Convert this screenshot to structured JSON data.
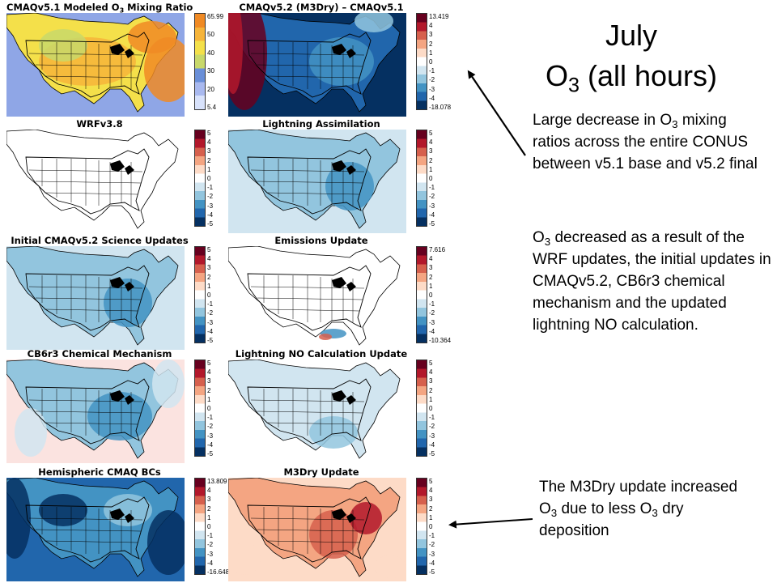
{
  "slide": {
    "title_line1": "July",
    "title_line2_prefix": "O",
    "title_line2_sub": "3",
    "title_line2_suffix": " (all hours)",
    "text1": {
      "a": "Large decrease in O",
      "a_sub": "3",
      "b": " mixing ratios across the entire CONUS between v5.1 base and v5.2 final"
    },
    "text2": {
      "a": "O",
      "a_sub": "3",
      "b": " decreased as a result of the WRF updates, the initial updates in CMAQv5.2, CB6r3 chemical mechanism and the updated lightning NO calculation."
    },
    "text3": {
      "a": "The M3Dry update increased O",
      "a_sub": "3",
      "b": " due to less O",
      "b_sub": "3",
      "c": " dry deposition"
    }
  },
  "panels": [
    {
      "title_a": "CMAQv5.1 Modeled O",
      "title_sub": "3",
      "title_b": " Mixing Ratio",
      "scheme": "abs",
      "ticks": [
        "65.99",
        "50",
        "40",
        "30",
        "20",
        "5.4"
      ]
    },
    {
      "title_a": "CMAQv5.2 (M3Dry) – CMAQv5.1",
      "title_sub": "",
      "title_b": "",
      "scheme": "bigneg",
      "ticks": [
        "13.419",
        "4",
        "3",
        "2",
        "1",
        "0",
        "-1",
        "-2",
        "-3",
        "-4",
        "-18.078"
      ]
    },
    {
      "title_a": "WRFv3.8",
      "title_sub": "",
      "title_b": "",
      "scheme": "slight",
      "ticks": [
        "5",
        "4",
        "3",
        "2",
        "1",
        "0",
        "-1",
        "-2",
        "-3",
        "-4",
        "-5"
      ]
    },
    {
      "title_a": "Lightning Assimilation",
      "title_sub": "",
      "title_b": "",
      "scheme": "moderate",
      "ticks": [
        "5",
        "4",
        "3",
        "2",
        "1",
        "0",
        "-1",
        "-2",
        "-3",
        "-4",
        "-5"
      ]
    },
    {
      "title_a": "Initial CMAQv5.2 Science Updates",
      "title_sub": "",
      "title_b": "",
      "scheme": "moderate",
      "ticks": [
        "5",
        "4",
        "3",
        "2",
        "1",
        "0",
        "-1",
        "-2",
        "-3",
        "-4",
        "-5"
      ]
    },
    {
      "title_a": "Emissions Update",
      "title_sub": "",
      "title_b": "",
      "scheme": "tiny",
      "ticks": [
        "7.616",
        "4",
        "3",
        "2",
        "1",
        "0",
        "-1",
        "-2",
        "-3",
        "-4",
        "-10.364"
      ]
    },
    {
      "title_a": "CB6r3 Chemical Mechanism",
      "title_sub": "",
      "title_b": "",
      "scheme": "cb6",
      "ticks": [
        "5",
        "4",
        "3",
        "2",
        "1",
        "0",
        "-1",
        "-2",
        "-3",
        "-4",
        "-5"
      ]
    },
    {
      "title_a": "Lightning NO Calculation Update",
      "title_sub": "",
      "title_b": "",
      "scheme": "light",
      "ticks": [
        "5",
        "4",
        "3",
        "2",
        "1",
        "0",
        "-1",
        "-2",
        "-3",
        "-4",
        "-5"
      ]
    },
    {
      "title_a": "Hemispheric CMAQ BCs",
      "title_sub": "",
      "title_b": "",
      "scheme": "bcs",
      "ticks": [
        "13.809",
        "4",
        "3",
        "2",
        "1",
        "0",
        "-1",
        "-2",
        "-3",
        "-4",
        "-16.648"
      ]
    },
    {
      "title_a": "M3Dry Update",
      "title_sub": "",
      "title_b": "",
      "scheme": "pos",
      "ticks": [
        "5",
        "4",
        "3",
        "2",
        "1",
        "0",
        "-1",
        "-2",
        "-3",
        "-4",
        "-5"
      ]
    }
  ],
  "colors": {
    "diverging": [
      "#67001f",
      "#b2182b",
      "#d6604d",
      "#f4a582",
      "#fddbc7",
      "#ffffff",
      "#d1e5f0",
      "#92c5de",
      "#4393c3",
      "#2166ac",
      "#053061"
    ],
    "absolute": [
      "#f08a24",
      "#f6b43a",
      "#f4e04a",
      "#c8d86a",
      "#6a8fd8",
      "#a9b9ef",
      "#d8e2fb"
    ]
  }
}
